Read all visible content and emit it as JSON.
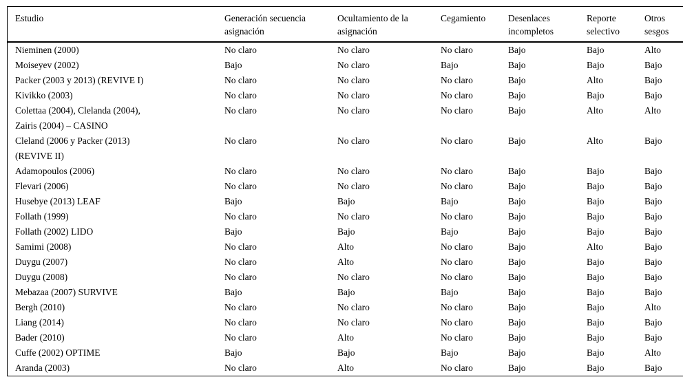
{
  "page": {
    "background": "#ffffff",
    "text_color": "#000000"
  },
  "table": {
    "columns": [
      {
        "key": "estudio",
        "label": "Estudio"
      },
      {
        "key": "generacion-secuencia-asignacion",
        "label": "Generación secuencia\nasignación"
      },
      {
        "key": "ocultamiento-asignacion",
        "label": "Ocultamiento de la\nasignación"
      },
      {
        "key": "cegamiento",
        "label": "Cegamiento"
      },
      {
        "key": "desenlaces-incompletos",
        "label": "Desenlaces\nincompletos"
      },
      {
        "key": "reporte-selectivo",
        "label": "Reporte\nselectivo"
      },
      {
        "key": "otros-sesgos",
        "label": "Otros\nsesgos"
      }
    ],
    "rows": [
      {
        "estudio": "Nieminen (2000)",
        "values": [
          "No claro",
          "No claro",
          "No claro",
          "Bajo",
          "Bajo",
          "Alto"
        ]
      },
      {
        "estudio": "Moiseyev (2002)",
        "values": [
          "Bajo",
          "No claro",
          "Bajo",
          "Bajo",
          "Bajo",
          "Bajo"
        ]
      },
      {
        "estudio": "Packer (2003 y 2013) (REVIVE I)",
        "values": [
          "No claro",
          "No claro",
          "No claro",
          "Bajo",
          "Alto",
          "Bajo"
        ]
      },
      {
        "estudio": "Kivikko (2003)",
        "values": [
          "No claro",
          "No claro",
          "No claro",
          "Bajo",
          "Bajo",
          "Bajo"
        ]
      },
      {
        "estudio": "Colettaa (2004), Clelanda (2004),\nZairis (2004) – CASINO",
        "values": [
          "No claro",
          "No claro",
          "No claro",
          "Bajo",
          "Alto",
          "Alto"
        ]
      },
      {
        "estudio": "Cleland (2006 y Packer (2013)\n(REVIVE II)",
        "values": [
          "No claro",
          "No claro",
          "No claro",
          "Bajo",
          "Alto",
          "Bajo"
        ]
      },
      {
        "estudio": "Adamopoulos (2006)",
        "values": [
          "No claro",
          "No claro",
          "No claro",
          "Bajo",
          "Bajo",
          "Bajo"
        ]
      },
      {
        "estudio": "Flevari (2006)",
        "values": [
          "No claro",
          "No claro",
          "No claro",
          "Bajo",
          "Bajo",
          "Bajo"
        ]
      },
      {
        "estudio": "Husebye (2013) LEAF",
        "values": [
          "Bajo",
          "Bajo",
          "Bajo",
          "Bajo",
          "Bajo",
          "Bajo"
        ]
      },
      {
        "estudio": "Follath (1999)",
        "values": [
          "No claro",
          "No claro",
          "No claro",
          "Bajo",
          "Bajo",
          "Bajo"
        ]
      },
      {
        "estudio": "Follath (2002) LIDO",
        "values": [
          "Bajo",
          "Bajo",
          "Bajo",
          "Bajo",
          "Bajo",
          "Bajo"
        ]
      },
      {
        "estudio": "Samimi (2008)",
        "values": [
          "No claro",
          "Alto",
          "No claro",
          "Bajo",
          "Alto",
          "Bajo"
        ]
      },
      {
        "estudio": "Duygu (2007)",
        "values": [
          "No claro",
          "Alto",
          "No claro",
          "Bajo",
          "Bajo",
          "Bajo"
        ]
      },
      {
        "estudio": "Duygu (2008)",
        "values": [
          "No claro",
          "No claro",
          "No claro",
          "Bajo",
          "Bajo",
          "Bajo"
        ]
      },
      {
        "estudio": "Mebazaa (2007) SURVIVE",
        "values": [
          "Bajo",
          "Bajo",
          "Bajo",
          "Bajo",
          "Bajo",
          "Bajo"
        ]
      },
      {
        "estudio": "Bergh (2010)",
        "values": [
          "No claro",
          "No claro",
          "No claro",
          "Bajo",
          "Bajo",
          "Alto"
        ]
      },
      {
        "estudio": "Liang (2014)",
        "values": [
          "No claro",
          "No claro",
          "No claro",
          "Bajo",
          "Bajo",
          "Bajo"
        ]
      },
      {
        "estudio": "Bader (2010)",
        "values": [
          "No claro",
          "Alto",
          "No claro",
          "Bajo",
          "Bajo",
          "Bajo"
        ]
      },
      {
        "estudio": "Cuffe (2002) OPTIME",
        "values": [
          "Bajo",
          "Bajo",
          "Bajo",
          "Bajo",
          "Bajo",
          "Alto"
        ]
      },
      {
        "estudio": "Aranda (2003)",
        "values": [
          "No claro",
          "Alto",
          "No claro",
          "Bajo",
          "Bajo",
          "Bajo"
        ]
      }
    ]
  }
}
